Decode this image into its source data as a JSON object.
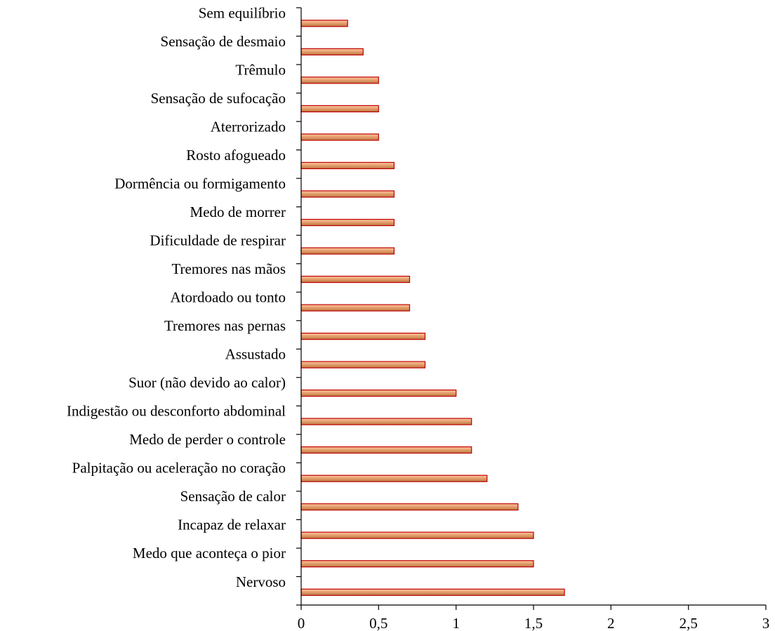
{
  "chart_data": {
    "type": "bar",
    "orientation": "horizontal",
    "categories": [
      "Sem equilíbrio",
      "Sensação de desmaio",
      "Trêmulo",
      "Sensação de sufocação",
      "Aterrorizado",
      "Rosto afogueado",
      "Dormência ou formigamento",
      "Medo de morrer",
      "Dificuldade de respirar",
      "Tremores nas mãos",
      "Atordoado ou tonto",
      "Tremores nas pernas",
      "Assustado",
      "Suor (não devido ao calor)",
      "Indigestão ou desconforto abdominal",
      "Medo de perder o controle",
      "Palpitação ou aceleração no coração",
      "Sensação de calor",
      "Incapaz de relaxar",
      "Medo que aconteça o pior",
      "Nervoso"
    ],
    "values": [
      0.3,
      0.4,
      0.5,
      0.5,
      0.5,
      0.6,
      0.6,
      0.6,
      0.6,
      0.7,
      0.7,
      0.8,
      0.8,
      1.0,
      1.1,
      1.1,
      1.2,
      1.4,
      1.5,
      1.5,
      1.7
    ],
    "xlim": [
      0,
      3
    ],
    "xticks": [
      0,
      0.5,
      1,
      1.5,
      2,
      2.5,
      3
    ],
    "xtick_labels": [
      "0",
      "0,5",
      "1",
      "1,5",
      "2",
      "2,5",
      "3"
    ],
    "title": "",
    "xlabel": "",
    "ylabel": "",
    "grid": false,
    "legend": "none",
    "colors": {
      "bar_light": "#f8c8a0",
      "bar_mid": "#e8a070",
      "bar_dark": "#b87840",
      "bar_edge": "#c00000",
      "axis": "#000000"
    }
  }
}
